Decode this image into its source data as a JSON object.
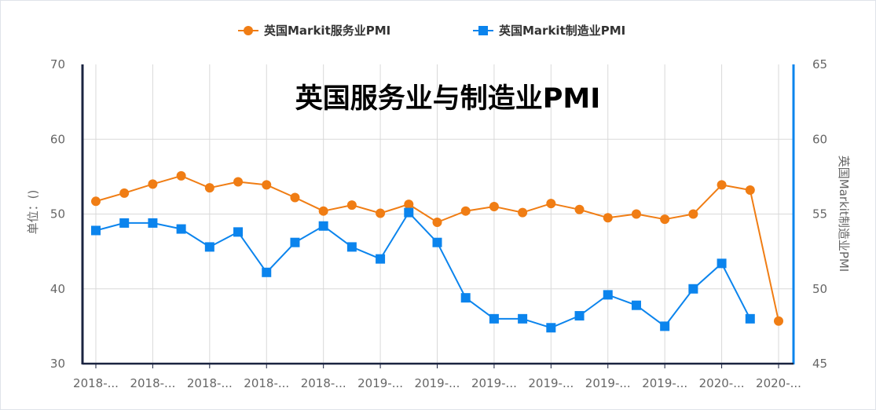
{
  "chart_data": {
    "type": "line",
    "title": "英国服务业与制造业PMI",
    "ylabel_left": "单位：()",
    "ylabel_right": "英国Markit制造业PMI",
    "ylim_left": [
      30,
      70
    ],
    "yticks_left": [
      "30",
      "40",
      "50",
      "60",
      "70"
    ],
    "ylim_right": [
      45,
      65
    ],
    "yticks_right": [
      "45",
      "50",
      "55",
      "60",
      "65"
    ],
    "x_tick_labels": [
      "2018-...",
      "2018-...",
      "2018-...",
      "2018-...",
      "2018-...",
      "2019-...",
      "2019-...",
      "2019-...",
      "2019-...",
      "2019-...",
      "2019-...",
      "2020-...",
      "2020-..."
    ],
    "grid": true,
    "legend_position": "top-center",
    "series": [
      {
        "name": "英国Markit服务业PMI",
        "axis": "left",
        "color": "#f07d14",
        "marker": "circle",
        "values": [
          51.7,
          52.8,
          54.0,
          55.1,
          53.5,
          54.3,
          53.9,
          52.2,
          50.4,
          51.2,
          50.1,
          51.3,
          48.9,
          50.4,
          51.0,
          50.2,
          51.4,
          50.6,
          49.5,
          50.0,
          49.3,
          50.0,
          53.9,
          53.2,
          35.7
        ]
      },
      {
        "name": "英国Markit制造业PMI",
        "axis": "right",
        "color": "#0b84ed",
        "marker": "square",
        "values": [
          53.9,
          54.4,
          54.4,
          54.0,
          52.8,
          53.8,
          51.1,
          53.1,
          54.2,
          52.8,
          52.0,
          55.1,
          53.1,
          49.4,
          48.0,
          48.0,
          47.4,
          48.2,
          49.6,
          48.9,
          47.5,
          50.0,
          51.7,
          48.0,
          null
        ]
      }
    ]
  }
}
